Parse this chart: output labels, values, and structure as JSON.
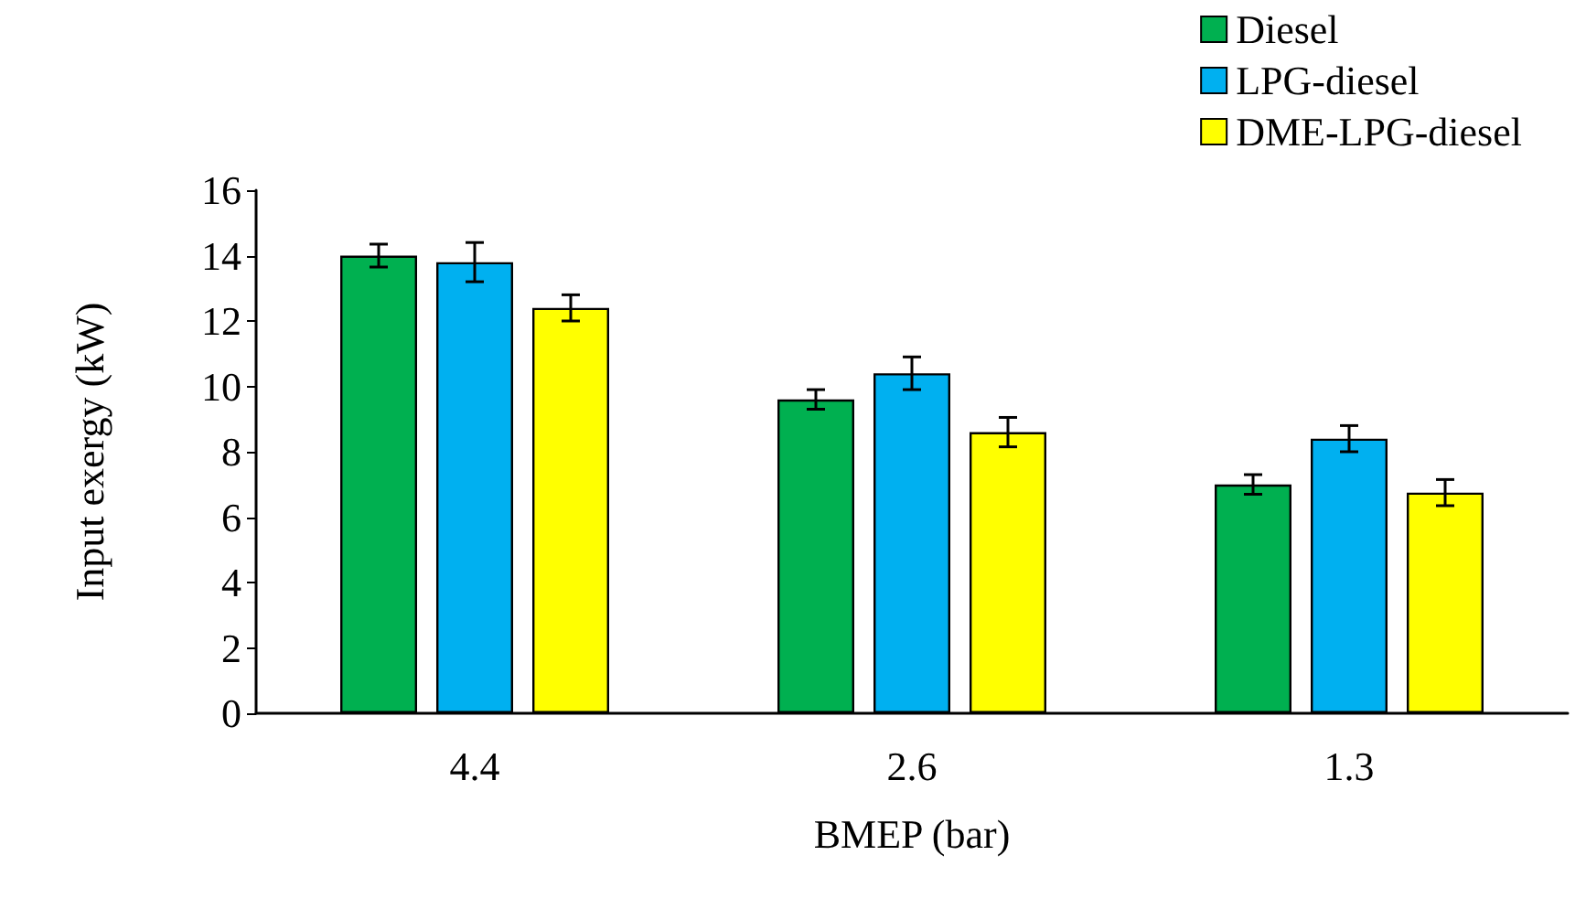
{
  "chart_data": {
    "type": "bar",
    "xlabel": "BMEP (bar)",
    "ylabel": "Input exergy (kW)",
    "categories": [
      "4.4",
      "2.6",
      "1.3"
    ],
    "series": [
      {
        "name": "Diesel",
        "color": "#00b050",
        "values": [
          14.0,
          9.6,
          7.0
        ],
        "errors": [
          0.35,
          0.3,
          0.3
        ]
      },
      {
        "name": "LPG-diesel",
        "color": "#00b0f0",
        "values": [
          13.8,
          10.4,
          8.4
        ],
        "errors": [
          0.6,
          0.5,
          0.4
        ]
      },
      {
        "name": "DME-LPG-diesel",
        "color": "#ffff00",
        "values": [
          12.4,
          8.6,
          6.75
        ],
        "errors": [
          0.4,
          0.45,
          0.4
        ]
      }
    ],
    "ylim": [
      0,
      16
    ],
    "yticks": [
      0,
      2,
      4,
      6,
      8,
      10,
      12,
      14,
      16
    ],
    "grid": false,
    "legend": "top right"
  }
}
